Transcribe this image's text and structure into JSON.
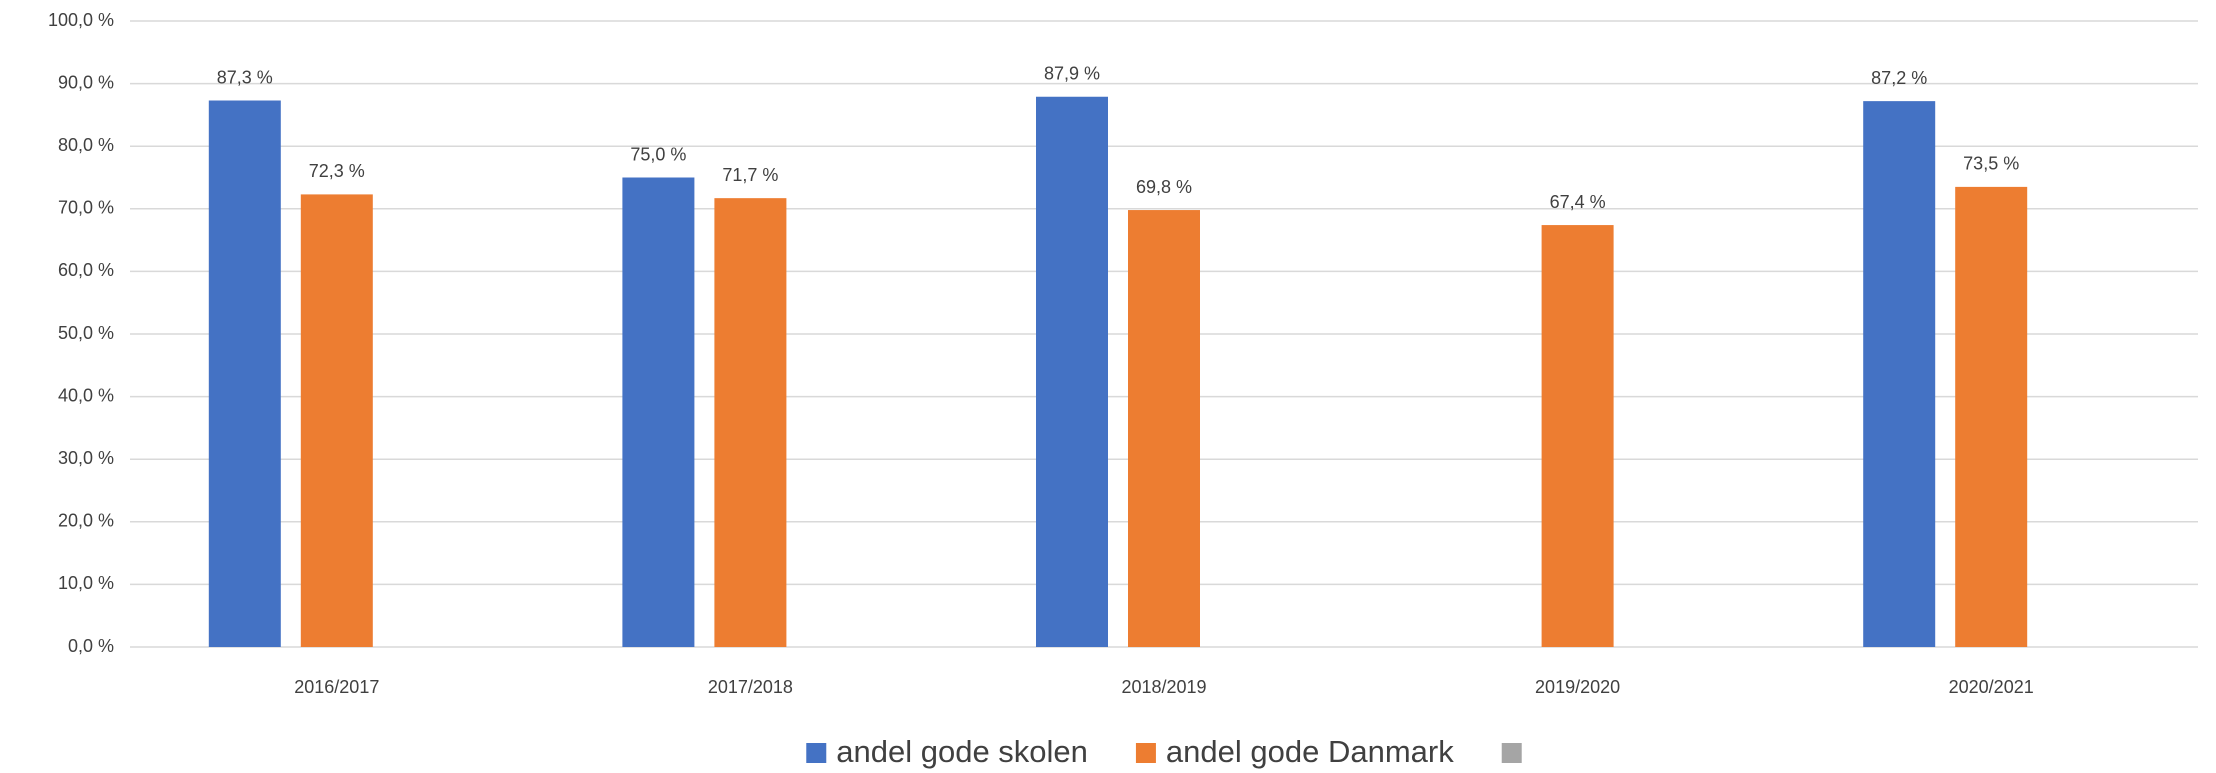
{
  "chart_data": {
    "type": "bar",
    "categories": [
      "2016/2017",
      "2017/2018",
      "2018/2019",
      "2019/2020",
      "2020/2021"
    ],
    "series": [
      {
        "name": "andel gode skolen",
        "color": "#4472c4",
        "values": [
          87.3,
          75.0,
          87.9,
          null,
          87.2
        ],
        "value_labels": [
          "87,3 %",
          "75,0 %",
          "87,9 %",
          null,
          "87,2 %"
        ]
      },
      {
        "name": "andel gode Danmark",
        "color": "#ed7d31",
        "values": [
          72.3,
          71.7,
          69.8,
          67.4,
          73.5
        ],
        "value_labels": [
          "72,3 %",
          "71,7 %",
          "69,8 %",
          "67,4 %",
          "73,5 %"
        ]
      },
      {
        "color": "#a5a5a5",
        "values": [
          null,
          null,
          null,
          null,
          null
        ]
      }
    ],
    "ylim": [
      0,
      100
    ],
    "yticks": [
      {
        "value": 0,
        "label": "0,0 %"
      },
      {
        "value": 10,
        "label": "10,0 %"
      },
      {
        "value": 20,
        "label": "20,0 %"
      },
      {
        "value": 30,
        "label": "30,0 %"
      },
      {
        "value": 40,
        "label": "40,0 %"
      },
      {
        "value": 50,
        "label": "50,0 %"
      },
      {
        "value": 60,
        "label": "60,0 %"
      },
      {
        "value": 70,
        "label": "70,0 %"
      },
      {
        "value": 80,
        "label": "80,0 %"
      },
      {
        "value": 90,
        "label": "90,0 %"
      },
      {
        "value": 100,
        "label": "100,0 %"
      }
    ],
    "grid": true,
    "legend": "bottom"
  }
}
